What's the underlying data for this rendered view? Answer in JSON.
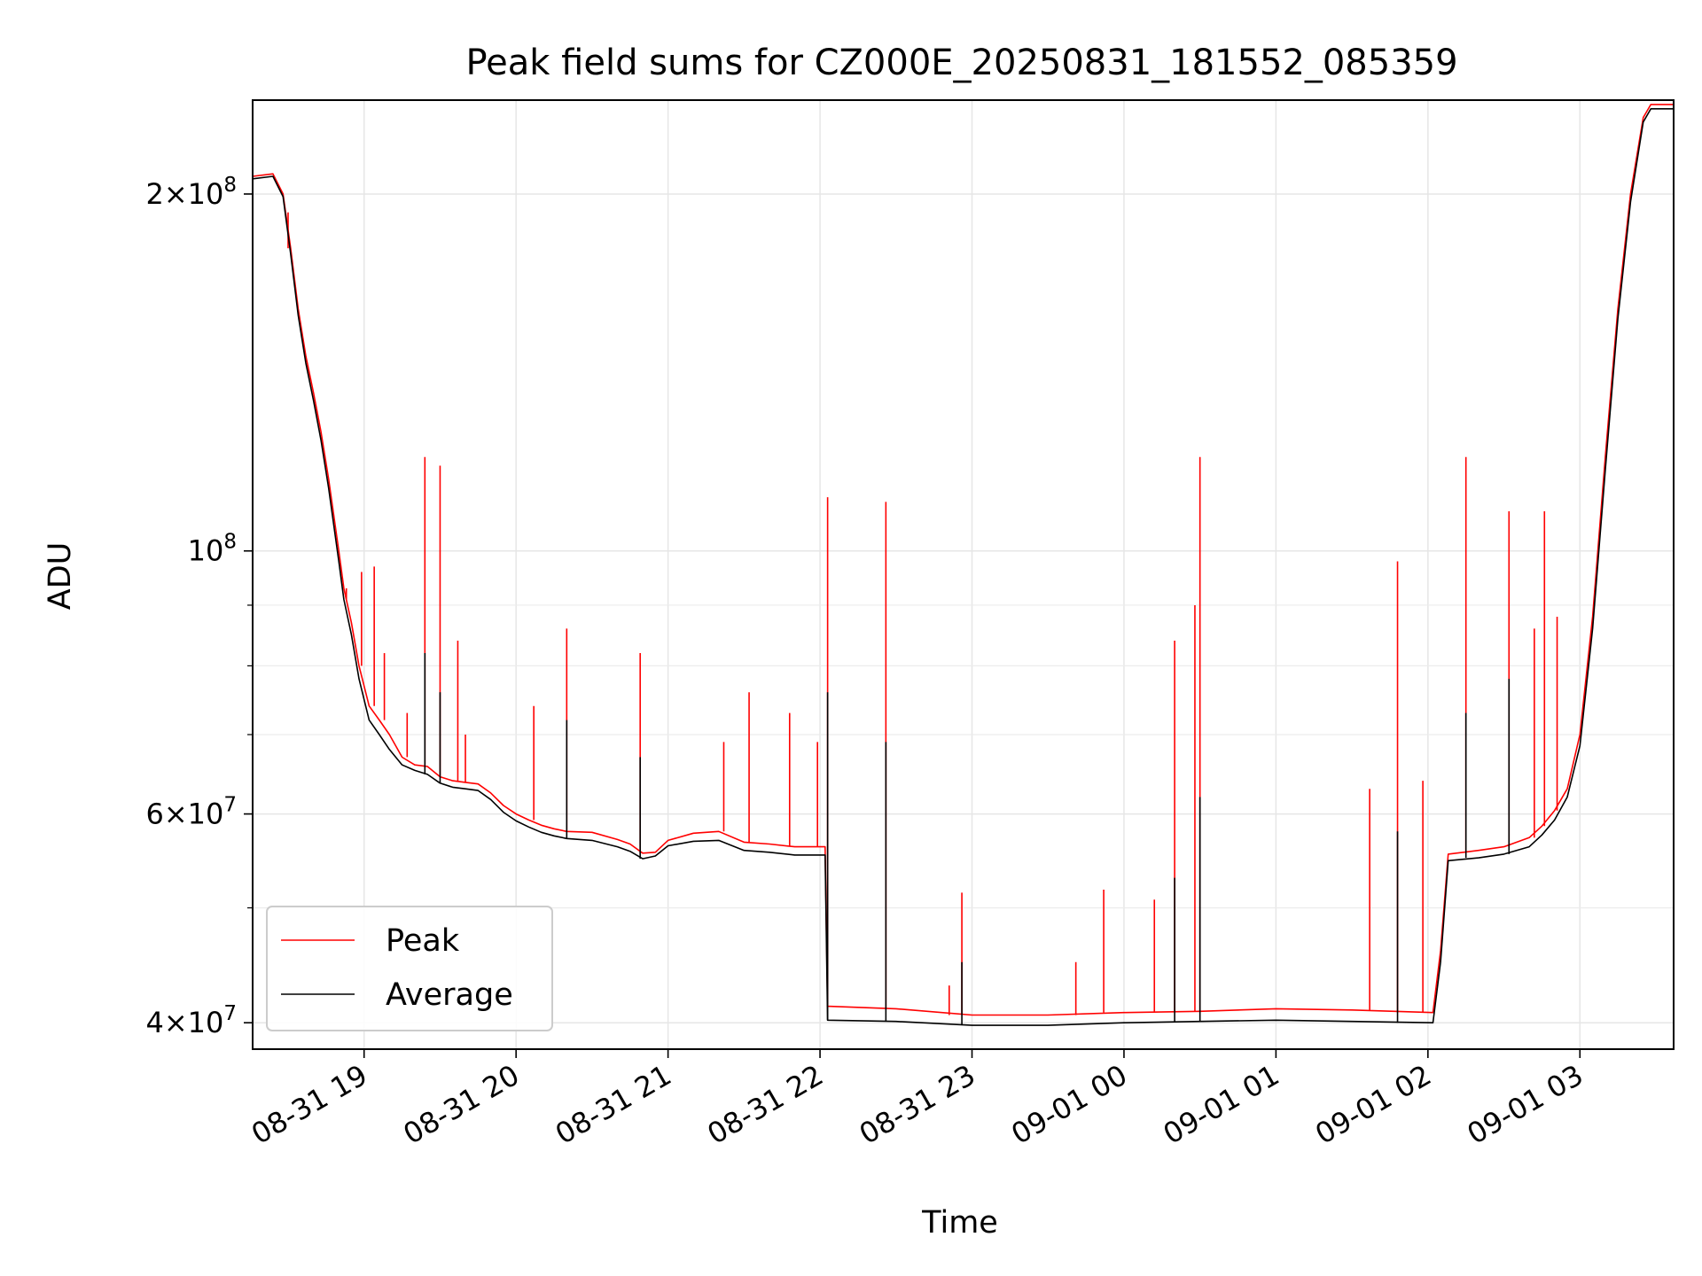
{
  "chart_data": {
    "type": "line",
    "title": "Peak field sums for CZ000E_20250831_181552_085359",
    "xlabel": "Time",
    "ylabel": "ADU",
    "yscale": "log",
    "ylim": [
      38000000,
      240000000
    ],
    "xlim": [
      "2025-08-31 18:16",
      "2025-09-01 03:37"
    ],
    "grid": true,
    "legend_position": "lower-left",
    "x_ticks": [
      {
        "t": "2025-08-31 19:00",
        "label": "08-31 19"
      },
      {
        "t": "2025-08-31 20:00",
        "label": "08-31 20"
      },
      {
        "t": "2025-08-31 21:00",
        "label": "08-31 21"
      },
      {
        "t": "2025-08-31 22:00",
        "label": "08-31 22"
      },
      {
        "t": "2025-08-31 23:00",
        "label": "08-31 23"
      },
      {
        "t": "2025-09-01 00:00",
        "label": "09-01 00"
      },
      {
        "t": "2025-09-01 01:00",
        "label": "09-01 01"
      },
      {
        "t": "2025-09-01 02:00",
        "label": "09-01 02"
      },
      {
        "t": "2025-09-01 03:00",
        "label": "09-01 03"
      }
    ],
    "y_ticks": [
      {
        "value": 40000000,
        "base": "4×10",
        "exp": "7"
      },
      {
        "value": 60000000,
        "base": "6×10",
        "exp": "7"
      },
      {
        "value": 100000000,
        "base": "10",
        "exp": "8"
      },
      {
        "value": 200000000,
        "base": "2×10",
        "exp": "8"
      }
    ],
    "y_minor_ticks": [
      50000000,
      70000000,
      80000000,
      90000000
    ],
    "series": [
      {
        "name": "Peak",
        "color": "#ff0000",
        "points": [
          [
            "2025-08-31 18:16",
            207000000
          ],
          [
            "2025-08-31 18:24",
            208000000
          ],
          [
            "2025-08-31 18:28",
            200000000
          ],
          [
            "2025-08-31 18:31",
            180000000
          ],
          [
            "2025-08-31 18:34",
            160000000
          ],
          [
            "2025-08-31 18:37",
            146000000
          ],
          [
            "2025-08-31 18:40",
            136000000
          ],
          [
            "2025-08-31 18:43",
            126000000
          ],
          [
            "2025-08-31 18:46",
            115000000
          ],
          [
            "2025-08-31 18:50",
            100000000
          ],
          [
            "2025-08-31 18:52",
            93000000
          ],
          [
            "2025-08-31 18:55",
            87000000
          ],
          [
            "2025-08-31 18:58",
            80000000
          ],
          [
            "2025-08-31 19:02",
            74000000
          ],
          [
            "2025-08-31 19:06",
            72000000
          ],
          [
            "2025-08-31 19:10",
            70000000
          ],
          [
            "2025-08-31 19:15",
            67000000
          ],
          [
            "2025-08-31 19:20",
            66000000
          ],
          [
            "2025-08-31 19:25",
            65800000
          ],
          [
            "2025-08-31 19:30",
            64500000
          ],
          [
            "2025-08-31 19:35",
            64000000
          ],
          [
            "2025-08-31 19:40",
            63800000
          ],
          [
            "2025-08-31 19:45",
            63600000
          ],
          [
            "2025-08-31 19:50",
            62500000
          ],
          [
            "2025-08-31 19:55",
            61000000
          ],
          [
            "2025-08-31 20:00",
            60000000
          ],
          [
            "2025-08-31 20:05",
            59300000
          ],
          [
            "2025-08-31 20:10",
            58700000
          ],
          [
            "2025-08-31 20:15",
            58300000
          ],
          [
            "2025-08-31 20:20",
            58000000
          ],
          [
            "2025-08-31 20:30",
            57900000
          ],
          [
            "2025-08-31 20:40",
            57100000
          ],
          [
            "2025-08-31 20:45",
            56600000
          ],
          [
            "2025-08-31 20:50",
            55600000
          ],
          [
            "2025-08-31 20:55",
            55700000
          ],
          [
            "2025-08-31 21:00",
            57000000
          ],
          [
            "2025-08-31 21:10",
            57800000
          ],
          [
            "2025-08-31 21:20",
            58000000
          ],
          [
            "2025-08-31 21:30",
            56800000
          ],
          [
            "2025-08-31 21:40",
            56600000
          ],
          [
            "2025-08-31 21:50",
            56300000
          ],
          [
            "2025-08-31 22:02",
            56300000
          ],
          [
            "2025-08-31 22:03",
            41300000
          ],
          [
            "2025-08-31 22:30",
            41100000
          ],
          [
            "2025-08-31 23:00",
            40600000
          ],
          [
            "2025-08-31 23:30",
            40600000
          ],
          [
            "2025-09-01 00:00",
            40800000
          ],
          [
            "2025-09-01 00:30",
            40900000
          ],
          [
            "2025-09-01 01:00",
            41100000
          ],
          [
            "2025-09-01 01:30",
            41000000
          ],
          [
            "2025-09-01 02:02",
            40800000
          ],
          [
            "2025-09-01 02:05",
            46000000
          ],
          [
            "2025-09-01 02:08",
            55500000
          ],
          [
            "2025-09-01 02:20",
            55900000
          ],
          [
            "2025-09-01 02:30",
            56300000
          ],
          [
            "2025-09-01 02:40",
            57300000
          ],
          [
            "2025-09-01 02:45",
            58600000
          ],
          [
            "2025-09-01 02:50",
            60400000
          ],
          [
            "2025-09-01 02:55",
            63000000
          ],
          [
            "2025-09-01 03:00",
            70000000
          ],
          [
            "2025-09-01 03:05",
            88000000
          ],
          [
            "2025-09-01 03:10",
            120000000
          ],
          [
            "2025-09-01 03:15",
            160000000
          ],
          [
            "2025-09-01 03:20",
            200000000
          ],
          [
            "2025-09-01 03:25",
            232000000
          ],
          [
            "2025-09-01 03:28",
            238000000
          ],
          [
            "2025-09-01 03:37",
            238000000
          ]
        ],
        "spikes": [
          [
            "2025-08-31 18:30",
            193000000
          ],
          [
            "2025-08-31 18:37",
            145000000
          ],
          [
            "2025-08-31 18:53",
            91000000
          ],
          [
            "2025-08-31 18:59",
            96000000
          ],
          [
            "2025-08-31 19:04",
            97000000
          ],
          [
            "2025-08-31 19:08",
            82000000
          ],
          [
            "2025-08-31 19:17",
            73000000
          ],
          [
            "2025-08-31 19:24",
            120000000
          ],
          [
            "2025-08-31 19:30",
            118000000
          ],
          [
            "2025-08-31 19:37",
            84000000
          ],
          [
            "2025-08-31 19:40",
            70000000
          ],
          [
            "2025-08-31 20:07",
            74000000
          ],
          [
            "2025-08-31 20:20",
            86000000
          ],
          [
            "2025-08-31 20:49",
            82000000
          ],
          [
            "2025-08-31 21:22",
            69000000
          ],
          [
            "2025-08-31 21:32",
            76000000
          ],
          [
            "2025-08-31 21:48",
            73000000
          ],
          [
            "2025-08-31 21:59",
            69000000
          ],
          [
            "2025-08-31 22:03",
            111000000
          ],
          [
            "2025-08-31 22:26",
            110000000
          ],
          [
            "2025-08-31 22:51",
            43000000
          ],
          [
            "2025-08-31 22:56",
            51500000
          ],
          [
            "2025-08-31 23:41",
            45000000
          ],
          [
            "2025-08-31 23:52",
            51800000
          ],
          [
            "2025-09-01 00:12",
            50800000
          ],
          [
            "2025-09-01 00:20",
            84000000
          ],
          [
            "2025-09-01 00:28",
            90000000
          ],
          [
            "2025-09-01 00:30",
            120000000
          ],
          [
            "2025-09-01 01:37",
            63000000
          ],
          [
            "2025-09-01 01:48",
            98000000
          ],
          [
            "2025-09-01 01:58",
            64000000
          ],
          [
            "2025-09-01 02:15",
            120000000
          ],
          [
            "2025-09-01 02:32",
            108000000
          ],
          [
            "2025-09-01 02:42",
            86000000
          ],
          [
            "2025-09-01 02:46",
            108000000
          ],
          [
            "2025-09-01 02:51",
            88000000
          ]
        ]
      },
      {
        "name": "Average",
        "color": "#000000",
        "points": [
          [
            "2025-08-31 18:16",
            206000000
          ],
          [
            "2025-08-31 18:24",
            207000000
          ],
          [
            "2025-08-31 18:28",
            199000000
          ],
          [
            "2025-08-31 18:31",
            178000000
          ],
          [
            "2025-08-31 18:34",
            158000000
          ],
          [
            "2025-08-31 18:37",
            144000000
          ],
          [
            "2025-08-31 18:40",
            134000000
          ],
          [
            "2025-08-31 18:43",
            124000000
          ],
          [
            "2025-08-31 18:46",
            113000000
          ],
          [
            "2025-08-31 18:50",
            98000000
          ],
          [
            "2025-08-31 18:52",
            91000000
          ],
          [
            "2025-08-31 18:55",
            85000000
          ],
          [
            "2025-08-31 18:58",
            78000000
          ],
          [
            "2025-08-31 19:02",
            72000000
          ],
          [
            "2025-08-31 19:06",
            70000000
          ],
          [
            "2025-08-31 19:10",
            68000000
          ],
          [
            "2025-08-31 19:15",
            66000000
          ],
          [
            "2025-08-31 19:20",
            65300000
          ],
          [
            "2025-08-31 19:25",
            64800000
          ],
          [
            "2025-08-31 19:30",
            63700000
          ],
          [
            "2025-08-31 19:35",
            63200000
          ],
          [
            "2025-08-31 19:40",
            63000000
          ],
          [
            "2025-08-31 19:45",
            62800000
          ],
          [
            "2025-08-31 19:50",
            61700000
          ],
          [
            "2025-08-31 19:55",
            60200000
          ],
          [
            "2025-08-31 20:00",
            59200000
          ],
          [
            "2025-08-31 20:05",
            58500000
          ],
          [
            "2025-08-31 20:10",
            57900000
          ],
          [
            "2025-08-31 20:15",
            57500000
          ],
          [
            "2025-08-31 20:20",
            57200000
          ],
          [
            "2025-08-31 20:30",
            57000000
          ],
          [
            "2025-08-31 20:40",
            56300000
          ],
          [
            "2025-08-31 20:45",
            55800000
          ],
          [
            "2025-08-31 20:50",
            55000000
          ],
          [
            "2025-08-31 20:55",
            55300000
          ],
          [
            "2025-08-31 21:00",
            56400000
          ],
          [
            "2025-08-31 21:10",
            56900000
          ],
          [
            "2025-08-31 21:20",
            57000000
          ],
          [
            "2025-08-31 21:30",
            55900000
          ],
          [
            "2025-08-31 21:40",
            55700000
          ],
          [
            "2025-08-31 21:50",
            55400000
          ],
          [
            "2025-08-31 22:02",
            55400000
          ],
          [
            "2025-08-31 22:03",
            40200000
          ],
          [
            "2025-08-31 22:30",
            40100000
          ],
          [
            "2025-08-31 23:00",
            39800000
          ],
          [
            "2025-08-31 23:30",
            39800000
          ],
          [
            "2025-09-01 00:00",
            40000000
          ],
          [
            "2025-09-01 00:30",
            40100000
          ],
          [
            "2025-09-01 01:00",
            40200000
          ],
          [
            "2025-09-01 01:30",
            40100000
          ],
          [
            "2025-09-01 02:02",
            40000000
          ],
          [
            "2025-09-01 02:05",
            45000000
          ],
          [
            "2025-09-01 02:08",
            54800000
          ],
          [
            "2025-09-01 02:20",
            55100000
          ],
          [
            "2025-09-01 02:30",
            55500000
          ],
          [
            "2025-09-01 02:40",
            56300000
          ],
          [
            "2025-09-01 02:45",
            57600000
          ],
          [
            "2025-09-01 02:50",
            59300000
          ],
          [
            "2025-09-01 02:55",
            62000000
          ],
          [
            "2025-09-01 03:00",
            68500000
          ],
          [
            "2025-09-01 03:05",
            86000000
          ],
          [
            "2025-09-01 03:10",
            117000000
          ],
          [
            "2025-09-01 03:15",
            157000000
          ],
          [
            "2025-09-01 03:20",
            197000000
          ],
          [
            "2025-09-01 03:25",
            230000000
          ],
          [
            "2025-09-01 03:28",
            236000000
          ],
          [
            "2025-09-01 03:37",
            236000000
          ]
        ],
        "spikes": [
          [
            "2025-08-31 19:24",
            82000000
          ],
          [
            "2025-08-31 19:30",
            76000000
          ],
          [
            "2025-08-31 20:20",
            72000000
          ],
          [
            "2025-08-31 20:49",
            67000000
          ],
          [
            "2025-08-31 22:03",
            76000000
          ],
          [
            "2025-08-31 22:26",
            69000000
          ],
          [
            "2025-08-31 22:56",
            45000000
          ],
          [
            "2025-09-01 00:20",
            53000000
          ],
          [
            "2025-09-01 00:30",
            62000000
          ],
          [
            "2025-09-01 01:48",
            58000000
          ],
          [
            "2025-09-01 02:15",
            73000000
          ],
          [
            "2025-09-01 02:32",
            78000000
          ]
        ]
      }
    ]
  }
}
